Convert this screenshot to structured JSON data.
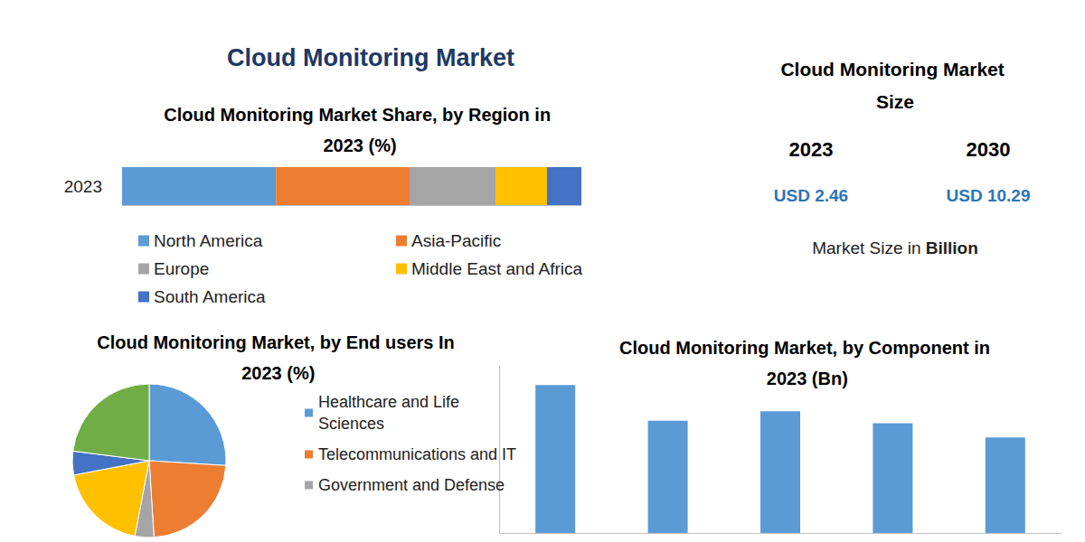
{
  "header": {
    "title": "Cloud Monitoring Market"
  },
  "market_size": {
    "title": "Cloud Monitoring Market Size",
    "years": [
      "2023",
      "2030"
    ],
    "currency": "USD",
    "values": [
      2.46,
      10.29
    ],
    "unit_text": "Market Size in",
    "unit": "Billion"
  },
  "chart_data": [
    {
      "type": "bar",
      "title": "Cloud Monitoring Market Share, by Region in 2023 (%)",
      "orientation": "horizontal",
      "stacked": true,
      "categories": [
        "2023"
      ],
      "series": [
        {
          "name": "North America",
          "color": "#5b9bd5",
          "values": [
            33.5
          ]
        },
        {
          "name": "Asia-Pacific",
          "color": "#ed7d31",
          "values": [
            29.1
          ]
        },
        {
          "name": "Europe",
          "color": "#a5a5a5",
          "values": [
            18.7
          ]
        },
        {
          "name": "Middle East and Africa",
          "color": "#ffc000",
          "values": [
            11.2
          ]
        },
        {
          "name": "South America",
          "color": "#4472c4",
          "values": [
            7.5
          ]
        }
      ],
      "xlim": [
        0,
        100
      ],
      "tick_labels": "y",
      "grid": false,
      "legend": "bottom"
    },
    {
      "type": "pie",
      "title": "Cloud Monitoring Market, by End users In 2023 (%)",
      "labels": [
        "Healthcare and Life Sciences",
        "Telecommunications and IT",
        "Government and Defense",
        null,
        null,
        null
      ],
      "values": [
        26,
        23,
        4,
        19,
        5,
        23
      ],
      "colors": [
        "#5b9bd5",
        "#ed7d31",
        "#a5a5a5",
        "#ffc000",
        "#4472c4",
        "#70ad47"
      ],
      "legend": "right"
    },
    {
      "type": "bar",
      "title": "Cloud Monitoring Market, by Component in 2023 (Bn)",
      "categories": [
        null,
        null,
        null,
        null,
        null
      ],
      "values": [
        0.62,
        0.47,
        0.51,
        0.46,
        0.4
      ],
      "color": "#5b9bd5",
      "ylim": [
        0,
        0.7
      ],
      "tick_labels": false,
      "grid": false
    }
  ]
}
